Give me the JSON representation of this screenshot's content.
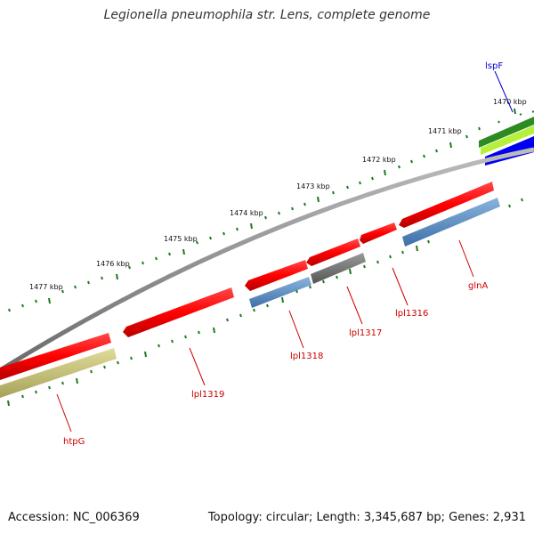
{
  "title": "Legionella pneumophila str. Lens, complete genome",
  "footer": {
    "accession": "Accession: NC_006369",
    "info": "Topology: circular; Length: 3,345,687 bp; Genes: 2,931"
  },
  "kbp_labels": [
    "1470 kbp",
    "1471 kbp",
    "1472 kbp",
    "1473 kbp",
    "1474 kbp",
    "1475 kbp",
    "1476 kbp",
    "1477 kbp"
  ],
  "gene_labels": {
    "lspF": "lspF",
    "glnA": "glnA",
    "lpl1316": "lpl1316",
    "lpl1317": "lpl1317",
    "lpl1318": "lpl1318",
    "lpl1319": "lpl1319",
    "htpG": "htpG"
  },
  "colors": {
    "forward_gene": "#ff0000",
    "reverse_gene": "#4f86c0",
    "backbone": "#888888",
    "ticks": "#1e7a1e",
    "lspF_label": "#0000cc",
    "gene_label": "#cc0000"
  }
}
